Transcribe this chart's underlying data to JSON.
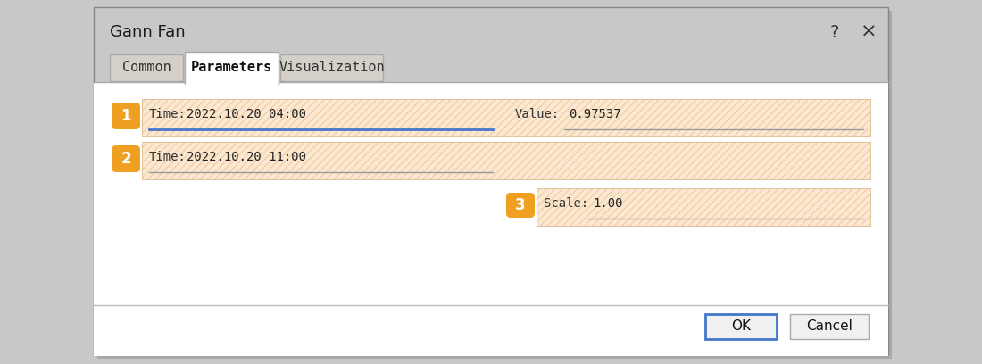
{
  "title": "Gann Fan",
  "tab_common": "Common",
  "tab_parameters": "Parameters",
  "tab_visualization": "Visualization",
  "dialog_bg": "#c8c8c8",
  "tab_active_bg": "#ffffff",
  "tab_inactive_bg": "#d4d0c8",
  "row1_badge": "1",
  "row2_badge": "2",
  "row3_badge": "3",
  "badge_color": "#f0a020",
  "badge_text_color": "#ffffff",
  "row1_time_label": "Time:",
  "row1_time_value": "2022.10.20 04:00",
  "row1_value_label": "Value:",
  "row1_value_value": "0.97537",
  "row2_time_label": "Time:",
  "row2_time_value": "2022.10.20 11:00",
  "row3_scale_label": "Scale:",
  "row3_scale_value": "1.00",
  "hatch_bg": "#fce8d0",
  "hatch_color": "#e0b888",
  "active_underline": "#4477cc",
  "inactive_underline": "#999999",
  "ok_label": "OK",
  "cancel_label": "Cancel",
  "button_bg": "#f0f0f0",
  "button_border": "#aaaaaa",
  "ok_border": "#4477cc",
  "title_fontsize": 13,
  "label_fontsize": 10,
  "value_fontsize": 10,
  "badge_fontsize": 12,
  "tab_fontsize": 11
}
